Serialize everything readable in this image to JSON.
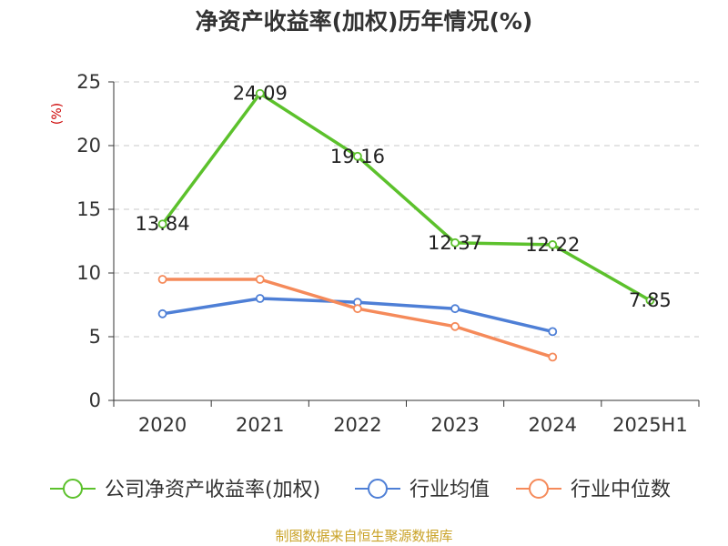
{
  "chart_data": {
    "type": "line",
    "title": "净资产收益率(加权)历年情况(%)",
    "ylabel": "(%)",
    "categories": [
      "2020",
      "2021",
      "2022",
      "2023",
      "2024",
      "2025H1"
    ],
    "ylim": [
      0,
      25
    ],
    "yticks": [
      0,
      5,
      10,
      15,
      20,
      25
    ],
    "grid": true,
    "legend_position": "bottom",
    "series": [
      {
        "name": "公司净资产收益率(加权)",
        "color": "#5CC12C",
        "values": [
          13.84,
          24.09,
          19.16,
          12.37,
          12.22,
          7.85
        ],
        "labels": [
          "13.84",
          "24.09",
          "19.16",
          "12.37",
          "12.22",
          "7.85"
        ]
      },
      {
        "name": "行业均值",
        "color": "#4E7FD6",
        "values": [
          6.8,
          8.0,
          7.7,
          7.2,
          5.4,
          null
        ]
      },
      {
        "name": "行业中位数",
        "color": "#F58A5A",
        "values": [
          9.5,
          9.5,
          7.2,
          5.8,
          3.4,
          null
        ]
      }
    ]
  },
  "footer": {
    "text": "制图数据来自恒生聚源数据库",
    "color": "#C9A227"
  },
  "ylabel_color": "#CC0000"
}
